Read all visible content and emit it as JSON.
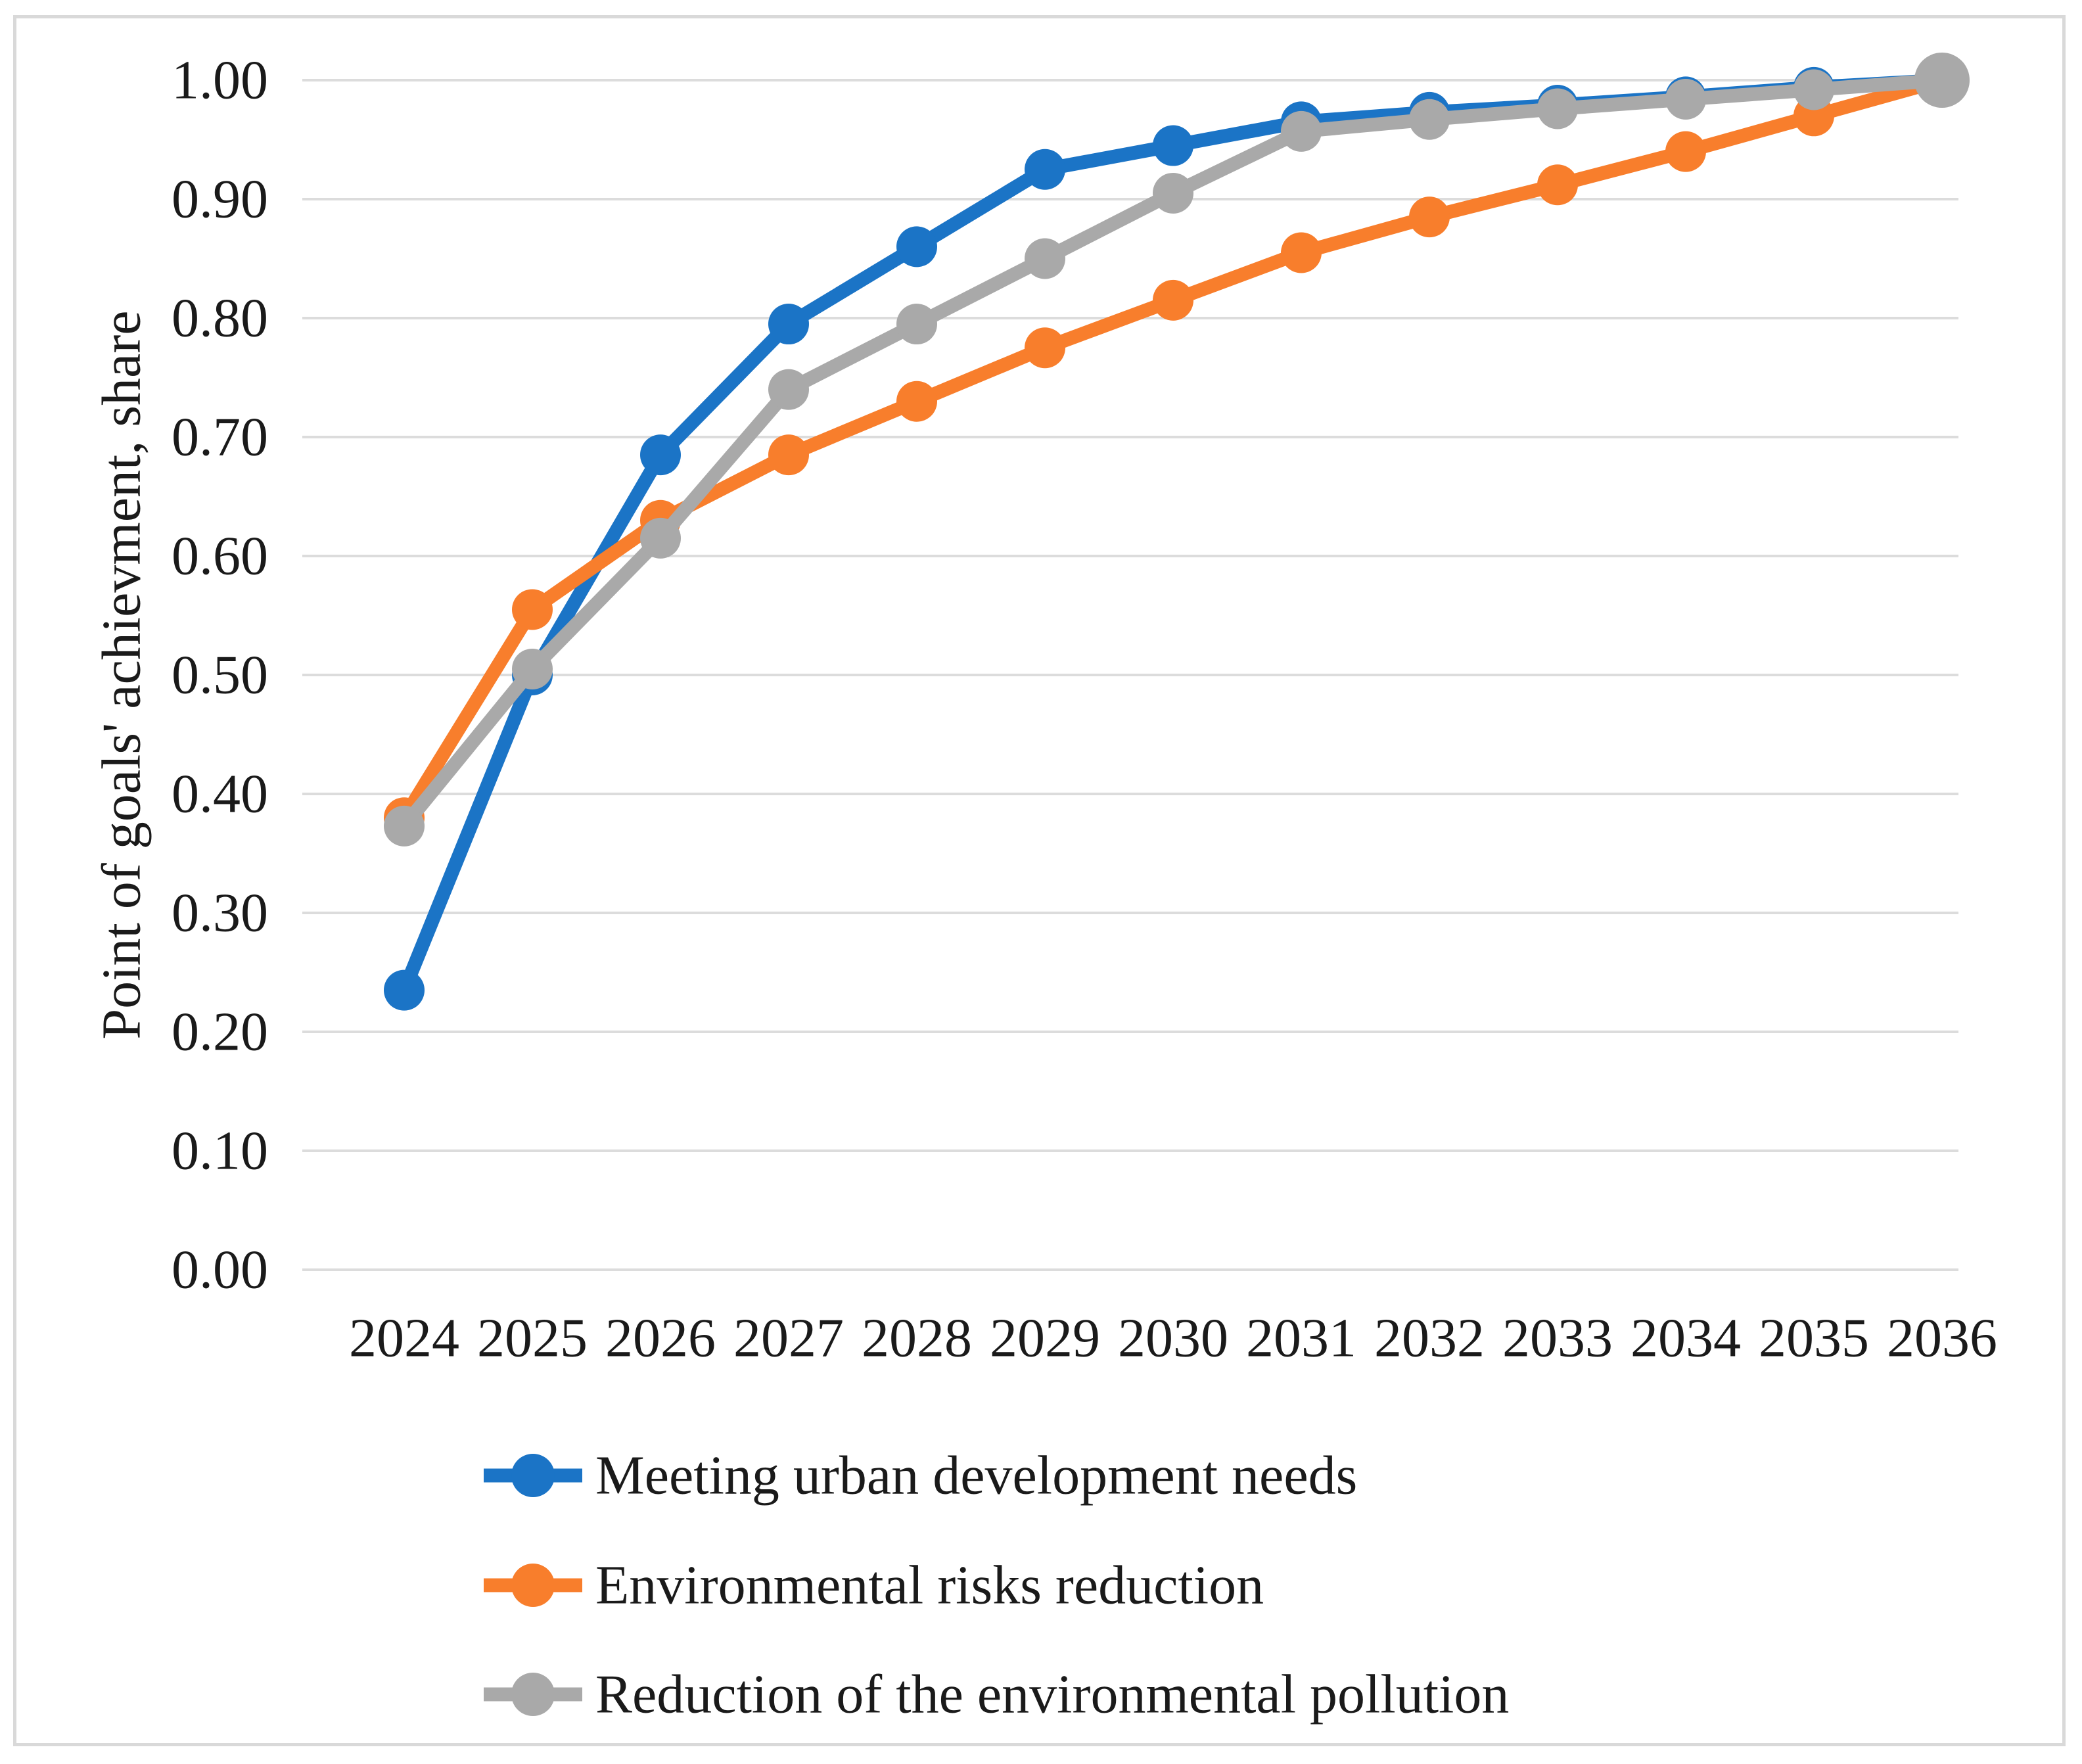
{
  "figure": {
    "background_color": "#ffffff",
    "border_color": "#d9d9d9",
    "gridline_color": "#dcdcdc",
    "text_color": "#1a1a1a"
  },
  "chart_data": {
    "type": "line",
    "title": "",
    "grid": "horizontal",
    "legend_position": "bottom-left",
    "x": {
      "label": "",
      "categories": [
        "2024",
        "2025",
        "2026",
        "2027",
        "2028",
        "2029",
        "2030",
        "2031",
        "2032",
        "2033",
        "2034",
        "2035",
        "2036"
      ]
    },
    "y": {
      "label": "Point of goals' achievment, share",
      "min": 0,
      "max": 1,
      "tick_step": 0.1,
      "tick_labels": [
        "0.00",
        "0.10",
        "0.20",
        "0.30",
        "0.40",
        "0.50",
        "0.60",
        "0.70",
        "0.80",
        "0.90",
        "1.00"
      ]
    },
    "series": [
      {
        "name": "Meeting urban development needs",
        "color": "#1b74c6",
        "marker": "circle",
        "values": [
          0.235,
          0.5,
          0.685,
          0.795,
          0.86,
          0.925,
          0.945,
          0.965,
          0.973,
          0.979,
          0.986,
          0.994,
          1.0
        ]
      },
      {
        "name": "Environmental risks reduction",
        "color": "#f87e2c",
        "marker": "circle",
        "values": [
          0.38,
          0.555,
          0.63,
          0.685,
          0.73,
          0.775,
          0.815,
          0.855,
          0.885,
          0.912,
          0.94,
          0.97,
          1.0
        ]
      },
      {
        "name": "Reduction of the environmental pollution",
        "color": "#a9a9a9",
        "marker": "circle",
        "values": [
          0.373,
          0.505,
          0.615,
          0.74,
          0.795,
          0.85,
          0.905,
          0.957,
          0.967,
          0.976,
          0.984,
          0.992,
          1.0
        ]
      }
    ]
  },
  "legend": {
    "marker_shape": "line-with-dot",
    "items": [
      {
        "label": "Meeting urban development needs"
      },
      {
        "label": "Environmental risks reduction"
      },
      {
        "label": "Reduction of the environmental pollution"
      }
    ]
  }
}
